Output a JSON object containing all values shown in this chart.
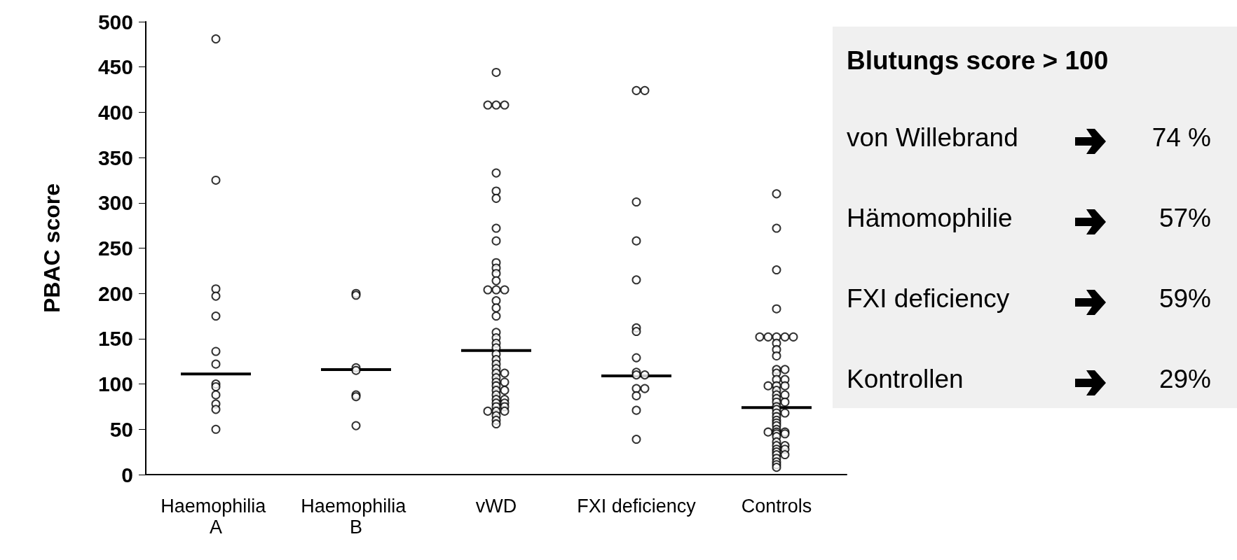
{
  "chart_data": [
    {
      "type": "scatter",
      "ylabel": "PBAC score",
      "categories": [
        "Haemophilia A",
        "Haemophilia B",
        "vWD",
        "FXI deficiency",
        "Controls"
      ],
      "ylim": [
        0,
        500
      ],
      "yticks": [
        0,
        50,
        100,
        150,
        200,
        250,
        300,
        350,
        400,
        450,
        500
      ],
      "grid": false,
      "series": [
        {
          "type": "scatter",
          "color": "#000000",
          "marker": "circle",
          "x": [
            "Haemophilia A",
            "Haemophilia A",
            "Haemophilia A",
            "Haemophilia A",
            "Haemophilia A",
            "Haemophilia A",
            "Haemophilia A",
            "Haemophilia A",
            "Haemophilia A",
            "Haemophilia A",
            "Haemophilia A",
            "Haemophilia A",
            "Haemophilia A"
          ],
          "values": [
            481,
            325,
            205,
            197,
            175,
            136,
            122,
            100,
            97,
            88,
            78,
            72,
            50
          ]
        },
        {
          "type": "scatter",
          "color": "#000000",
          "marker": "circle",
          "x": [
            "Haemophilia B",
            "Haemophilia B",
            "Haemophilia B",
            "Haemophilia B",
            "Haemophilia B",
            "Haemophilia B",
            "Haemophilia B"
          ],
          "values": [
            200,
            198,
            118,
            115,
            88,
            86,
            54
          ]
        },
        {
          "type": "scatter",
          "color": "#000000",
          "marker": "circle",
          "x": [
            "vWD",
            "vWD",
            "vWD",
            "vWD",
            "vWD",
            "vWD",
            "vWD",
            "vWD",
            "vWD",
            "vWD",
            "vWD",
            "vWD",
            "vWD",
            "vWD",
            "vWD",
            "vWD",
            "vWD",
            "vWD",
            "vWD",
            "vWD",
            "vWD",
            "vWD",
            "vWD",
            "vWD",
            "vWD",
            "vWD",
            "vWD",
            "vWD",
            "vWD",
            "vWD",
            "vWD",
            "vWD",
            "vWD",
            "vWD",
            "vWD",
            "vWD",
            "vWD",
            "vWD",
            "vWD",
            "vWD",
            "vWD",
            "vWD",
            "vWD",
            "vWD",
            "vWD",
            "vWD",
            "vWD",
            "vWD"
          ],
          "values": [
            444,
            408,
            408,
            408,
            333,
            313,
            305,
            272,
            258,
            234,
            228,
            222,
            214,
            204,
            204,
            204,
            192,
            184,
            175,
            157,
            151,
            145,
            140,
            133,
            127,
            122,
            117,
            112,
            112,
            107,
            102,
            102,
            98,
            93,
            93,
            88,
            83,
            83,
            79,
            79,
            75,
            75,
            70,
            70,
            70,
            65,
            60,
            56
          ]
        },
        {
          "type": "scatter",
          "color": "#000000",
          "marker": "circle",
          "x": [
            "FXI deficiency",
            "FXI deficiency",
            "FXI deficiency",
            "FXI deficiency",
            "FXI deficiency",
            "FXI deficiency",
            "FXI deficiency",
            "FXI deficiency",
            "FXI deficiency",
            "FXI deficiency",
            "FXI deficiency",
            "FXI deficiency",
            "FXI deficiency",
            "FXI deficiency",
            "FXI deficiency",
            "FXI deficiency"
          ],
          "values": [
            424,
            424,
            301,
            258,
            215,
            162,
            158,
            129,
            113,
            110,
            110,
            95,
            95,
            87,
            71,
            39
          ]
        },
        {
          "type": "scatter",
          "color": "#000000",
          "marker": "circle",
          "x": [
            "Controls",
            "Controls",
            "Controls",
            "Controls",
            "Controls",
            "Controls",
            "Controls",
            "Controls",
            "Controls",
            "Controls",
            "Controls",
            "Controls",
            "Controls",
            "Controls",
            "Controls",
            "Controls",
            "Controls",
            "Controls",
            "Controls",
            "Controls",
            "Controls",
            "Controls",
            "Controls",
            "Controls",
            "Controls",
            "Controls",
            "Controls",
            "Controls",
            "Controls",
            "Controls",
            "Controls",
            "Controls",
            "Controls",
            "Controls",
            "Controls",
            "Controls",
            "Controls",
            "Controls",
            "Controls",
            "Controls",
            "Controls",
            "Controls",
            "Controls",
            "Controls",
            "Controls",
            "Controls",
            "Controls",
            "Controls",
            "Controls",
            "Controls",
            "Controls",
            "Controls",
            "Controls"
          ],
          "values": [
            310,
            272,
            226,
            183,
            152,
            152,
            152,
            152,
            152,
            145,
            138,
            131,
            116,
            116,
            112,
            105,
            105,
            98,
            98,
            98,
            93,
            88,
            88,
            84,
            80,
            80,
            75,
            72,
            68,
            68,
            64,
            60,
            57,
            54,
            50,
            47,
            47,
            47,
            45,
            45,
            42,
            36,
            32,
            32,
            28,
            28,
            25,
            22,
            22,
            18,
            14,
            11,
            8
          ]
        },
        {
          "type": "box",
          "color": "#000000",
          "boxes": [
            {
              "low": 111,
              "q1": 111,
              "median": 111,
              "q3": 111,
              "high": 111
            },
            {
              "low": 116,
              "q1": 116,
              "median": 116,
              "q3": 116,
              "high": 116
            },
            {
              "low": 137,
              "q1": 137,
              "median": 137,
              "q3": 137,
              "high": 137
            },
            {
              "low": 109,
              "q1": 109,
              "median": 109,
              "q3": 109,
              "high": 109
            },
            {
              "low": 74,
              "q1": 74,
              "median": 74,
              "q3": 74,
              "high": 74
            }
          ]
        }
      ]
    },
    {
      "type": "other",
      "title": "Blutungs score > 100",
      "annotations": [
        "von Willebrand",
        "74 %",
        "Hämomophilie",
        "57%",
        "FXI deficiency",
        "59%",
        "Kontrollen",
        "29%"
      ]
    }
  ]
}
